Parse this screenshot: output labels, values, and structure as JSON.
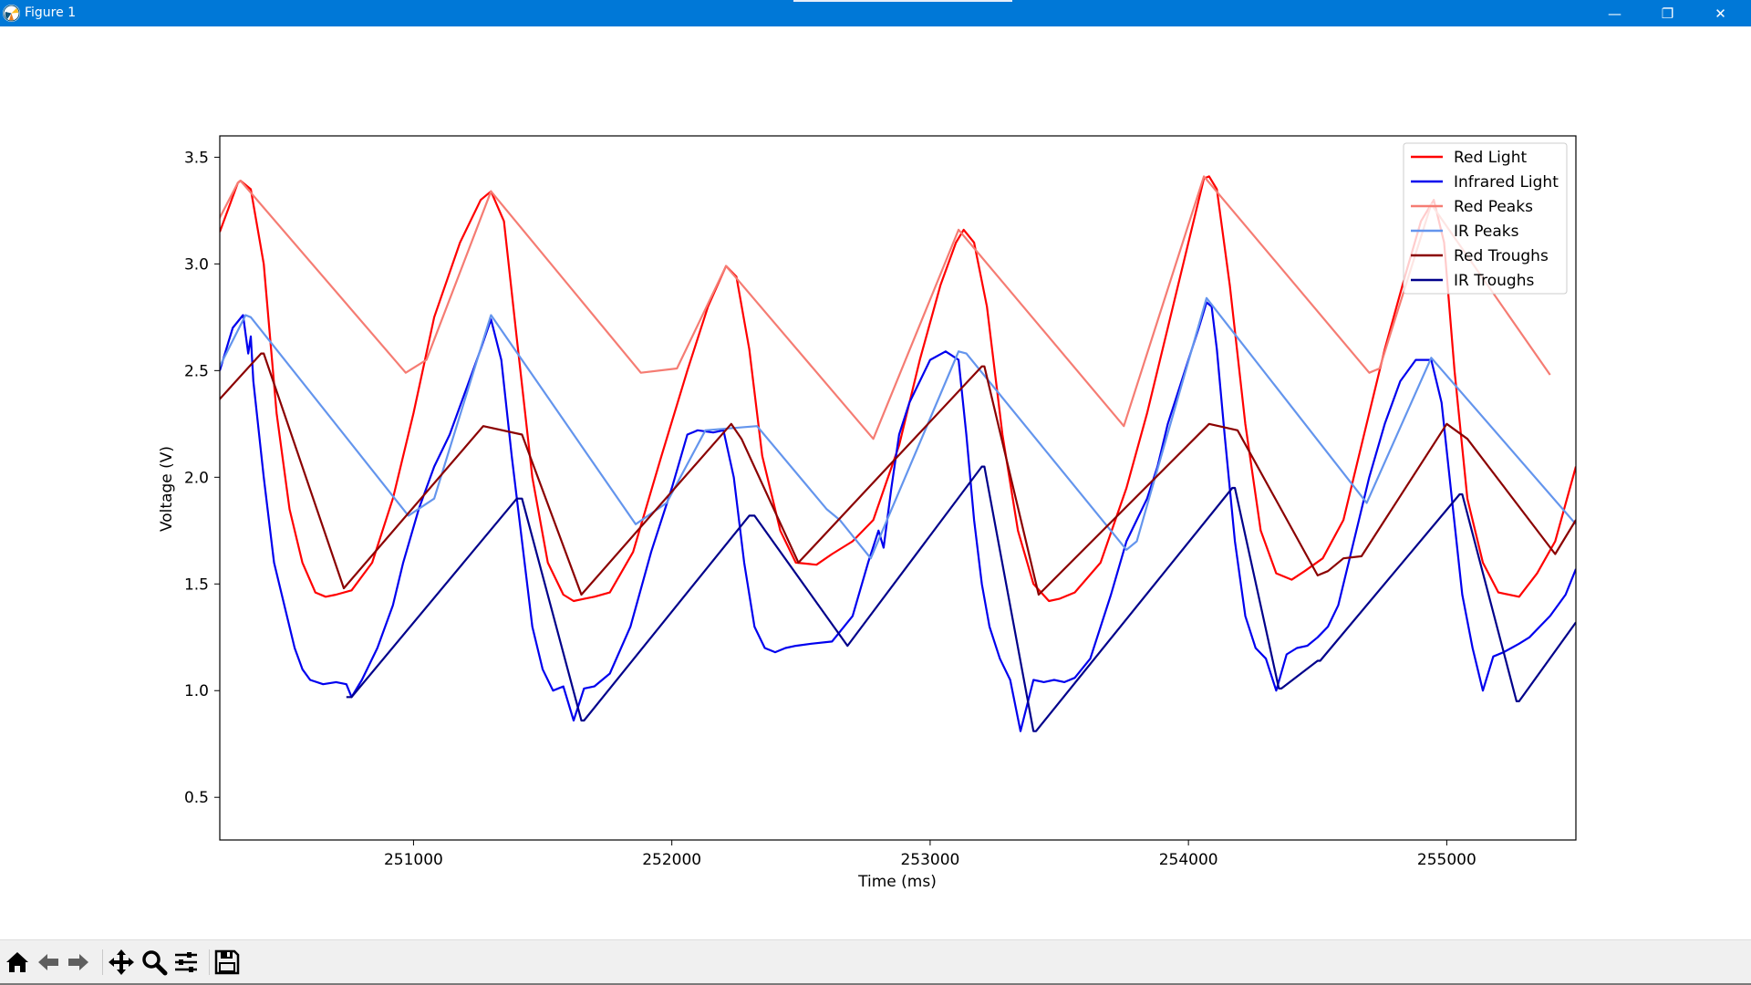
{
  "window": {
    "title": "Figure 1",
    "controls": {
      "minimize": "—",
      "restore": "❐",
      "close": "✕"
    }
  },
  "toolbar": {
    "items": [
      "home-icon",
      "back-icon",
      "forward-icon",
      "pan-icon",
      "zoom-icon",
      "configure-icon",
      "save-icon"
    ]
  },
  "chart_data": {
    "type": "line",
    "xlabel": "Time (ms)",
    "ylabel": "Voltage (V)",
    "xlim": [
      250250,
      255500
    ],
    "ylim": [
      0.3,
      3.6
    ],
    "xticks": [
      251000,
      252000,
      253000,
      254000,
      255000
    ],
    "yticks": [
      0.5,
      1.0,
      1.5,
      2.0,
      2.5,
      3.0,
      3.5
    ],
    "grid": false,
    "legend_position": "top-right",
    "series": [
      {
        "name": "Red Light",
        "color": "#ff0000",
        "x": [
          250250,
          250320,
          250330,
          250370,
          250420,
          250470,
          250520,
          250570,
          250620,
          250660,
          250700,
          250760,
          250840,
          250920,
          251000,
          251080,
          251180,
          251260,
          251300,
          251350,
          251400,
          251460,
          251520,
          251580,
          251620,
          251660,
          251700,
          251760,
          251850,
          251960,
          252060,
          252140,
          252210,
          252250,
          252300,
          252350,
          252420,
          252480,
          252560,
          252620,
          252700,
          252780,
          252880,
          252960,
          253040,
          253100,
          253130,
          253170,
          253220,
          253280,
          253340,
          253400,
          253460,
          253500,
          253560,
          253660,
          253760,
          253840,
          253920,
          254000,
          254060,
          254080,
          254110,
          254160,
          254220,
          254280,
          254340,
          254400,
          254450,
          254520,
          254600,
          254680,
          254760,
          254840,
          254900,
          254950,
          254990,
          255030,
          255080,
          255140,
          255200,
          255280,
          255350,
          255420,
          255500
        ],
        "values": [
          3.15,
          3.38,
          3.39,
          3.35,
          3.0,
          2.3,
          1.85,
          1.6,
          1.46,
          1.44,
          1.45,
          1.47,
          1.6,
          1.9,
          2.3,
          2.75,
          3.1,
          3.3,
          3.34,
          3.2,
          2.65,
          2.0,
          1.6,
          1.45,
          1.42,
          1.43,
          1.44,
          1.46,
          1.65,
          2.1,
          2.5,
          2.8,
          2.99,
          2.94,
          2.6,
          2.1,
          1.75,
          1.6,
          1.59,
          1.64,
          1.7,
          1.8,
          2.15,
          2.55,
          2.9,
          3.1,
          3.16,
          3.1,
          2.8,
          2.2,
          1.75,
          1.5,
          1.42,
          1.43,
          1.46,
          1.6,
          1.95,
          2.3,
          2.7,
          3.1,
          3.4,
          3.41,
          3.35,
          2.9,
          2.25,
          1.75,
          1.55,
          1.52,
          1.56,
          1.62,
          1.8,
          2.2,
          2.6,
          2.95,
          3.2,
          3.3,
          3.1,
          2.5,
          1.9,
          1.6,
          1.46,
          1.44,
          1.55,
          1.7,
          2.05
        ]
      },
      {
        "name": "Infrared Light",
        "color": "#0000ee",
        "x": [
          250250,
          250300,
          250340,
          250360,
          250370,
          250380,
          250420,
          250460,
          250500,
          250540,
          250570,
          250600,
          250650,
          250700,
          250740,
          250760,
          250800,
          250860,
          250920,
          250960,
          251020,
          251080,
          251100,
          251140,
          251200,
          251260,
          251300,
          251340,
          251380,
          251420,
          251460,
          251500,
          251540,
          251580,
          251620,
          251660,
          251700,
          251760,
          251840,
          251920,
          252000,
          252060,
          252100,
          252160,
          252200,
          252240,
          252280,
          252320,
          252360,
          252400,
          252440,
          252480,
          252540,
          252620,
          252700,
          252760,
          252800,
          252820,
          252850,
          252880,
          252920,
          252960,
          253000,
          253060,
          253110,
          253140,
          253170,
          253200,
          253230,
          253270,
          253310,
          253350,
          253400,
          253440,
          253480,
          253520,
          253560,
          253620,
          253700,
          253760,
          253800,
          253840,
          253880,
          253920,
          253960,
          254000,
          254040,
          254070,
          254090,
          254110,
          254140,
          254180,
          254220,
          254260,
          254300,
          254340,
          254380,
          254420,
          254460,
          254500,
          254540,
          254580,
          254620,
          254660,
          254700,
          254760,
          254820,
          254880,
          254940,
          254980,
          255020,
          255060,
          255100,
          255140,
          255180,
          255220,
          255250,
          255280,
          255320,
          255360,
          255400,
          255460,
          255500
        ],
        "values": [
          2.5,
          2.7,
          2.76,
          2.58,
          2.66,
          2.45,
          2.0,
          1.6,
          1.4,
          1.2,
          1.1,
          1.05,
          1.03,
          1.04,
          1.03,
          0.97,
          1.05,
          1.2,
          1.4,
          1.6,
          1.85,
          2.05,
          2.1,
          2.2,
          2.4,
          2.6,
          2.74,
          2.55,
          2.1,
          1.7,
          1.3,
          1.1,
          1.0,
          1.02,
          0.86,
          1.01,
          1.02,
          1.08,
          1.3,
          1.65,
          1.95,
          2.2,
          2.22,
          2.21,
          2.22,
          2.0,
          1.6,
          1.3,
          1.2,
          1.18,
          1.2,
          1.21,
          1.22,
          1.23,
          1.35,
          1.6,
          1.75,
          1.67,
          1.95,
          2.2,
          2.35,
          2.45,
          2.55,
          2.59,
          2.55,
          2.2,
          1.8,
          1.5,
          1.3,
          1.15,
          1.05,
          0.81,
          1.05,
          1.04,
          1.05,
          1.04,
          1.06,
          1.15,
          1.45,
          1.7,
          1.8,
          1.9,
          2.05,
          2.25,
          2.4,
          2.55,
          2.7,
          2.82,
          2.8,
          2.6,
          2.2,
          1.7,
          1.35,
          1.2,
          1.15,
          1.0,
          1.17,
          1.2,
          1.21,
          1.25,
          1.3,
          1.4,
          1.6,
          1.8,
          2.0,
          2.25,
          2.45,
          2.55,
          2.55,
          2.35,
          1.9,
          1.45,
          1.2,
          1.0,
          1.16,
          1.18,
          1.2,
          1.22,
          1.25,
          1.3,
          1.35,
          1.45,
          1.57
        ]
      },
      {
        "name": "Red Peaks",
        "color": "#f57c73",
        "x": [
          250200,
          250320,
          250330,
          250970,
          251050,
          251300,
          251880,
          252020,
          252210,
          252780,
          253110,
          253750,
          254060,
          254700,
          254740,
          254940,
          255400
        ],
        "values": [
          3.1,
          3.38,
          3.39,
          2.49,
          2.55,
          3.34,
          2.49,
          2.51,
          2.99,
          2.18,
          3.16,
          2.24,
          3.41,
          2.49,
          2.51,
          3.28,
          2.48
        ]
      },
      {
        "name": "IR Peaks",
        "color": "#6495ed",
        "x": [
          250200,
          250350,
          250370,
          250980,
          251080,
          251300,
          251860,
          251980,
          252130,
          252330,
          252600,
          252650,
          252770,
          253110,
          253140,
          253760,
          253800,
          254070,
          254690,
          254940,
          255500
        ],
        "values": [
          2.4,
          2.76,
          2.75,
          1.82,
          1.9,
          2.76,
          1.78,
          1.88,
          2.22,
          2.24,
          1.85,
          1.8,
          1.62,
          2.59,
          2.58,
          1.66,
          1.7,
          2.84,
          1.88,
          2.56,
          1.78
        ]
      },
      {
        "name": "Red Troughs",
        "color": "#8b0000",
        "x": [
          250200,
          250410,
          250420,
          250730,
          251270,
          251420,
          251650,
          252230,
          252270,
          252490,
          253200,
          253210,
          253420,
          254080,
          254190,
          254500,
          254540,
          254600,
          254670,
          255000,
          255080,
          255420,
          255500
        ],
        "values": [
          2.3,
          2.58,
          2.58,
          1.48,
          2.24,
          2.2,
          1.45,
          2.25,
          2.18,
          1.6,
          2.52,
          2.52,
          1.45,
          2.25,
          2.22,
          1.54,
          1.56,
          1.62,
          1.63,
          2.25,
          2.18,
          1.64,
          1.8
        ]
      },
      {
        "name": "IR Troughs",
        "color": "#00008b",
        "x": [
          250740,
          250760,
          251400,
          251420,
          251650,
          251660,
          252300,
          252320,
          252680,
          253200,
          253210,
          253400,
          253410,
          254170,
          254180,
          254350,
          254360,
          254500,
          254510,
          255050,
          255060,
          255270,
          255280,
          255500
        ],
        "values": [
          0.97,
          0.97,
          1.9,
          1.9,
          0.86,
          0.86,
          1.82,
          1.82,
          1.21,
          2.05,
          2.05,
          0.81,
          0.81,
          1.95,
          1.95,
          1.01,
          1.01,
          1.14,
          1.14,
          1.92,
          1.92,
          0.95,
          0.95,
          1.32
        ]
      }
    ]
  }
}
